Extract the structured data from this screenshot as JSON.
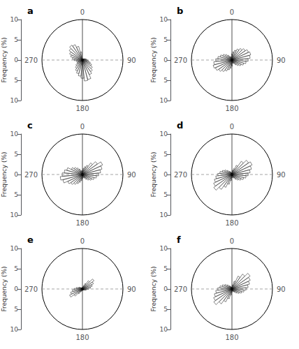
{
  "chart_data": [
    {
      "type": "rose",
      "title": "a",
      "ylabel": "Frequency (%)",
      "color": "white",
      "grid": false,
      "x": [
        0,
        10,
        20,
        30,
        40,
        50,
        60,
        70,
        80,
        90,
        100,
        110,
        120,
        130,
        140,
        150,
        160,
        170,
        180,
        190,
        200,
        210,
        220,
        230,
        240,
        250,
        260,
        270,
        280,
        290,
        300,
        310,
        320,
        330,
        340,
        350
      ],
      "xticks": [
        0,
        90,
        180,
        270
      ],
      "ylim": [
        0,
        10
      ],
      "yticks": [
        0,
        5,
        10
      ],
      "values": [
        0.2,
        0.2,
        0.3,
        0.3,
        0.4,
        0.5,
        0.6,
        0.8,
        1.0,
        1.2,
        1.5,
        2.0,
        2.5,
        3.0,
        3.5,
        4.0,
        5.0,
        5.2,
        4.5,
        4.0,
        3.5,
        3.0,
        2.5,
        2.0,
        1.5,
        1.2,
        1.5,
        2.0,
        2.5,
        3.0,
        3.5,
        4.0,
        4.5,
        4.2,
        3.5,
        2.0
      ]
    },
    {
      "type": "rose",
      "title": "b",
      "ylabel": "Frequency (%)",
      "color": "white",
      "grid": false,
      "x": [
        0,
        10,
        20,
        30,
        40,
        50,
        60,
        70,
        80,
        90,
        100,
        110,
        120,
        130,
        140,
        150,
        160,
        170,
        180,
        190,
        200,
        210,
        220,
        230,
        240,
        250,
        260,
        270,
        280,
        290,
        300,
        310,
        320,
        330,
        340,
        350
      ],
      "xticks": [
        0,
        90,
        180,
        270
      ],
      "ylim": [
        0,
        10
      ],
      "yticks": [
        0,
        5,
        10
      ],
      "values": [
        1.5,
        2.0,
        2.5,
        3.0,
        3.5,
        4.0,
        4.5,
        4.8,
        4.5,
        4.0,
        3.5,
        3.0,
        2.5,
        2.0,
        1.5,
        1.0,
        0.8,
        0.8,
        1.5,
        2.0,
        2.5,
        3.0,
        3.5,
        4.0,
        4.5,
        4.8,
        4.5,
        4.0,
        3.5,
        3.0,
        2.5,
        2.0,
        1.5,
        1.0,
        0.8,
        0.8
      ]
    },
    {
      "type": "rose",
      "title": "c",
      "ylabel": "Frequency (%)",
      "color": "white",
      "grid": false,
      "x": [
        0,
        10,
        20,
        30,
        40,
        50,
        60,
        70,
        80,
        90,
        100,
        110,
        120,
        130,
        140,
        150,
        160,
        170,
        180,
        190,
        200,
        210,
        220,
        230,
        240,
        250,
        260,
        270,
        280,
        290,
        300,
        310,
        320,
        330,
        340,
        350
      ],
      "xticks": [
        0,
        90,
        180,
        270
      ],
      "ylim": [
        0,
        10
      ],
      "yticks": [
        0,
        5,
        10
      ],
      "values": [
        1.0,
        1.5,
        2.0,
        2.5,
        3.5,
        4.5,
        5.5,
        5.0,
        4.5,
        4.0,
        3.5,
        3.0,
        2.5,
        2.0,
        1.5,
        1.0,
        0.8,
        0.5,
        1.0,
        1.5,
        2.0,
        2.5,
        3.0,
        3.5,
        4.0,
        5.0,
        5.5,
        5.0,
        4.5,
        4.0,
        3.0,
        2.5,
        2.0,
        1.5,
        1.0,
        0.8
      ]
    },
    {
      "type": "rose",
      "title": "d",
      "ylabel": "Frequency (%)",
      "color": "white",
      "grid": false,
      "x": [
        0,
        10,
        20,
        30,
        40,
        50,
        60,
        70,
        80,
        90,
        100,
        110,
        120,
        130,
        140,
        150,
        160,
        170,
        180,
        190,
        200,
        210,
        220,
        230,
        240,
        250,
        260,
        270,
        280,
        290,
        300,
        310,
        320,
        330,
        340,
        350
      ],
      "xticks": [
        0,
        90,
        180,
        270
      ],
      "ylim": [
        0,
        10
      ],
      "yticks": [
        0,
        5,
        10
      ],
      "values": [
        0.5,
        1.0,
        1.5,
        2.5,
        4.0,
        5.0,
        5.5,
        5.0,
        4.5,
        4.0,
        3.5,
        3.0,
        2.5,
        2.0,
        1.5,
        1.0,
        0.8,
        0.5,
        0.8,
        1.5,
        2.5,
        3.5,
        4.5,
        5.5,
        5.0,
        4.5,
        4.0,
        3.5,
        3.0,
        2.5,
        2.0,
        1.5,
        1.0,
        0.8,
        0.5,
        0.3
      ]
    },
    {
      "type": "rose",
      "title": "e",
      "ylabel": "Frequency (%)",
      "color": "white",
      "grid": false,
      "x": [
        0,
        10,
        20,
        30,
        40,
        50,
        60,
        70,
        80,
        90,
        100,
        110,
        120,
        130,
        140,
        150,
        160,
        170,
        180,
        190,
        200,
        210,
        220,
        230,
        240,
        250,
        260,
        270,
        280,
        290,
        300,
        310,
        320,
        330,
        340,
        350
      ],
      "xticks": [
        0,
        90,
        180,
        270
      ],
      "ylim": [
        0,
        10
      ],
      "yticks": [
        0,
        5,
        10
      ],
      "values": [
        0.3,
        0.5,
        0.8,
        1.5,
        2.5,
        3.5,
        3.0,
        2.5,
        2.0,
        1.5,
        1.0,
        0.8,
        0.5,
        0.4,
        0.3,
        0.3,
        0.3,
        0.3,
        0.3,
        0.4,
        0.5,
        0.8,
        1.5,
        2.5,
        3.5,
        3.0,
        2.5,
        2.0,
        1.5,
        1.0,
        0.8,
        0.5,
        0.4,
        0.3,
        0.3,
        0.3
      ]
    },
    {
      "type": "rose",
      "title": "f",
      "ylabel": "Frequency (%)",
      "color": "white",
      "grid": false,
      "x": [
        0,
        10,
        20,
        30,
        40,
        50,
        60,
        70,
        80,
        90,
        100,
        110,
        120,
        130,
        140,
        150,
        160,
        170,
        180,
        190,
        200,
        210,
        220,
        230,
        240,
        250,
        260,
        270,
        280,
        290,
        300,
        310,
        320,
        330,
        340,
        350
      ],
      "xticks": [
        0,
        90,
        180,
        270
      ],
      "ylim": [
        0,
        10
      ],
      "yticks": [
        0,
        5,
        10
      ],
      "values": [
        0.5,
        1.0,
        2.0,
        3.5,
        4.5,
        5.5,
        5.0,
        4.5,
        4.0,
        3.5,
        3.0,
        2.5,
        2.0,
        1.5,
        1.0,
        0.8,
        0.5,
        0.5,
        0.8,
        1.5,
        2.5,
        3.5,
        4.5,
        5.5,
        5.0,
        4.5,
        4.0,
        3.5,
        3.0,
        2.5,
        2.0,
        1.5,
        1.0,
        0.8,
        0.5,
        0.4
      ]
    }
  ]
}
